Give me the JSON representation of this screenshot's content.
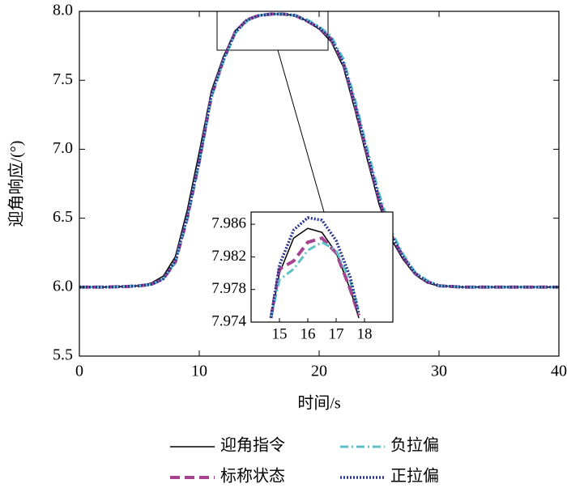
{
  "chart_data": [
    {
      "type": "line",
      "xlabel": "时间/s",
      "ylabel": "迎角响应/(°)",
      "xlim": [
        0,
        40
      ],
      "ylim": [
        5.5,
        8.0
      ],
      "xticks": [
        0,
        10,
        20,
        30,
        40
      ],
      "yticks": [
        {
          "value": 5.5,
          "label": "5.5"
        },
        {
          "value": 6.0,
          "label": "6.0"
        },
        {
          "value": 6.5,
          "label": "6.5"
        },
        {
          "value": 7.0,
          "label": "7.0"
        },
        {
          "value": 7.5,
          "label": "7.5"
        },
        {
          "value": 8.0,
          "label": "8.0"
        }
      ],
      "x": [
        0,
        2,
        4,
        5,
        6,
        7,
        8,
        9,
        10,
        11,
        12,
        13,
        14,
        15,
        16,
        17,
        18,
        19,
        20,
        21,
        22,
        23,
        24,
        25,
        26,
        27,
        28,
        29,
        30,
        32,
        35,
        40
      ],
      "series": [
        {
          "name": "迎角指令",
          "color": "#000000",
          "style": "solid",
          "values": [
            6,
            6,
            6.005,
            6.01,
            6.03,
            6.08,
            6.22,
            6.56,
            6.98,
            7.42,
            7.67,
            7.86,
            7.94,
            7.97,
            7.985,
            7.98,
            7.97,
            7.93,
            7.87,
            7.78,
            7.6,
            7.28,
            6.93,
            6.6,
            6.35,
            6.2,
            6.09,
            6.03,
            6.01,
            6,
            6,
            6
          ]
        },
        {
          "name": "标称状态",
          "color": "#a8448f",
          "style": "dashed",
          "values": [
            6,
            6,
            6.005,
            6.01,
            6.02,
            6.06,
            6.18,
            6.5,
            6.91,
            7.38,
            7.64,
            7.85,
            7.94,
            7.97,
            7.98,
            7.98,
            7.97,
            7.93,
            7.88,
            7.8,
            7.63,
            7.32,
            6.97,
            6.64,
            6.38,
            6.22,
            6.1,
            6.04,
            6.01,
            6,
            6,
            6
          ]
        },
        {
          "name": "负拉偏",
          "color": "#5fc0c8",
          "style": "dashdot",
          "values": [
            6,
            6,
            6.005,
            6.01,
            6.02,
            6.06,
            6.18,
            6.5,
            6.9,
            7.37,
            7.63,
            7.84,
            7.93,
            7.97,
            7.98,
            7.98,
            7.97,
            7.94,
            7.89,
            7.82,
            7.66,
            7.36,
            7.01,
            6.68,
            6.41,
            6.24,
            6.11,
            6.05,
            6.01,
            6,
            6,
            6
          ]
        },
        {
          "name": "正拉偏",
          "color": "#27358c",
          "style": "dotted",
          "values": [
            6,
            6,
            6.005,
            6.01,
            6.02,
            6.06,
            6.19,
            6.51,
            6.92,
            7.39,
            7.65,
            7.85,
            7.94,
            7.97,
            7.98,
            7.98,
            7.97,
            7.93,
            7.88,
            7.8,
            7.63,
            7.32,
            6.97,
            6.64,
            6.38,
            6.22,
            6.1,
            6.04,
            6.01,
            6,
            6,
            6
          ]
        }
      ]
    },
    {
      "type": "line",
      "xlim": [
        14,
        19
      ],
      "ylim": [
        7.974,
        7.9875
      ],
      "xticks": [
        15,
        16,
        17,
        18
      ],
      "yticks": [
        7.974,
        7.978,
        7.982,
        7.986
      ],
      "x": [
        14.7,
        15,
        15.5,
        16,
        16.5,
        17,
        17.5,
        17.8
      ],
      "series": [
        {
          "color": "#000000",
          "style": "solid",
          "values": [
            7.9745,
            7.98,
            7.9843,
            7.9855,
            7.985,
            7.9825,
            7.978,
            7.9745
          ]
        },
        {
          "color": "#a8448f",
          "style": "dashed",
          "values": [
            7.9745,
            7.9805,
            7.9815,
            7.9838,
            7.9843,
            7.9825,
            7.978,
            7.9748
          ]
        },
        {
          "color": "#5fc0c8",
          "style": "dashdot",
          "values": [
            7.9745,
            7.9792,
            7.9805,
            7.9828,
            7.9838,
            7.9828,
            7.979,
            7.9755
          ]
        },
        {
          "color": "#27358c",
          "style": "dotted",
          "values": [
            7.9745,
            7.981,
            7.9853,
            7.9868,
            7.9865,
            7.984,
            7.9795,
            7.975
          ]
        }
      ]
    }
  ]
}
